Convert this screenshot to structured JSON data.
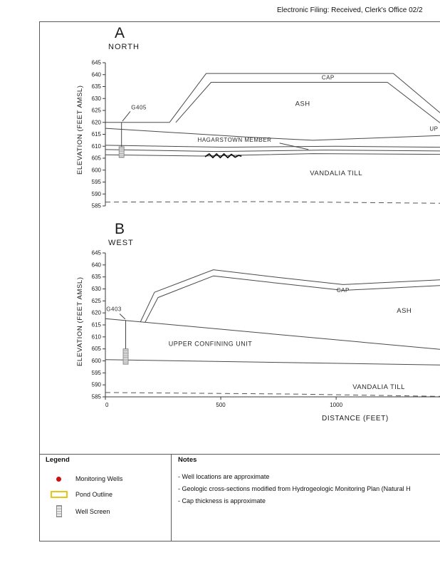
{
  "page": {
    "header_text": "Electronic Filing: Received, Clerk's Office 02/2"
  },
  "colors": {
    "monitoring_well": "#cc1111",
    "pond_outline": "#e6c619",
    "well_screen_fill": "#d9d9d9",
    "section_line": "#4a4a4a"
  },
  "chart_data": [
    {
      "type": "line",
      "panel_letter": "A",
      "panel_title": "NORTH",
      "ylabel": "ELEVATION (FEET AMSL)",
      "ylim": [
        585,
        645
      ],
      "yticks": [
        645,
        640,
        635,
        630,
        625,
        620,
        615,
        610,
        605,
        600,
        595,
        590,
        585
      ],
      "xlim": [
        0,
        1450
      ],
      "xticks": [],
      "grid": false,
      "series": [
        {
          "name": "ground-surface-left",
          "style": "solid",
          "points": [
            [
              0,
              620
            ],
            [
              278,
              620
            ]
          ]
        },
        {
          "name": "cap-top",
          "style": "solid",
          "points": [
            [
              278,
              620
            ],
            [
              437,
              640.5
            ],
            [
              1248,
              640.5
            ],
            [
              1450,
              624
            ]
          ]
        },
        {
          "name": "cap-bottom",
          "style": "solid",
          "points": [
            [
              305,
              620
            ],
            [
              458,
              636.8
            ],
            [
              1222,
              636.8
            ],
            [
              1450,
              619.8
            ]
          ]
        },
        {
          "name": "upper-confining-top",
          "style": "solid",
          "points": [
            [
              0,
              617.5
            ],
            [
              620,
              613.8
            ],
            [
              900,
              612.5
            ],
            [
              1450,
              614.5
            ]
          ]
        },
        {
          "name": "hagarstown-leader",
          "style": "solid",
          "points": [
            [
              755,
              611.3
            ],
            [
              880,
              608.6
            ]
          ]
        },
        {
          "name": "hagarstown-top",
          "style": "solid",
          "points": [
            [
              0,
              610.4
            ],
            [
              520,
              609.6
            ],
            [
              1000,
              610
            ],
            [
              1450,
              609.6
            ]
          ]
        },
        {
          "name": "hagarstown-mid",
          "style": "solid",
          "points": [
            [
              0,
              608.6
            ],
            [
              480,
              607.8
            ],
            [
              950,
              608.4
            ],
            [
              1450,
              608
            ]
          ]
        },
        {
          "name": "hagarstown-base",
          "style": "solid",
          "points": [
            [
              0,
              606.4
            ],
            [
              420,
              605.9
            ],
            [
              900,
              606.9
            ],
            [
              1450,
              606.6
            ]
          ]
        },
        {
          "name": "organic-lens",
          "style": "scribble",
          "points": [
            [
              432,
              605.6
            ],
            [
              450,
              606.8
            ],
            [
              466,
              605.2
            ],
            [
              482,
              606.8
            ],
            [
              498,
              605.2
            ],
            [
              514,
              606.8
            ],
            [
              530,
              605.2
            ],
            [
              546,
              606.6
            ],
            [
              562,
              605.4
            ],
            [
              578,
              606.2
            ],
            [
              590,
              605.8
            ]
          ]
        },
        {
          "name": "potentiometric-surface",
          "style": "dashed",
          "points": [
            [
              0,
              586.6
            ],
            [
              700,
              586.8
            ],
            [
              1450,
              586.1
            ]
          ]
        }
      ],
      "labels": [
        {
          "text": "CAP",
          "x": 965,
          "y": 638,
          "size": 8
        },
        {
          "text": "ASH",
          "x": 855,
          "y": 627,
          "size": 9.5
        },
        {
          "text": "HAGARSTOWN MEMBER",
          "x": 560,
          "y": 611.8,
          "size": 8
        },
        {
          "text": "VANDALIA TILL",
          "x": 1000,
          "y": 597.8,
          "size": 9.5
        },
        {
          "text": "UP",
          "x": 1405,
          "y": 616.5,
          "size": 8,
          "anchor": "start"
        }
      ],
      "wells": [
        {
          "label": "G405",
          "x": 70,
          "top": 620,
          "bottom": 605.3,
          "screen_top": 609.8,
          "screen_bottom": 605.3,
          "label_x": 112,
          "label_y": 625.5,
          "leader": [
            [
              74,
              620.5
            ],
            [
              108,
              624.6
            ]
          ]
        }
      ]
    },
    {
      "type": "line",
      "panel_letter": "B",
      "panel_title": "WEST",
      "ylabel": "ELEVATION (FEET AMSL)",
      "xlabel": "DISTANCE (FEET)",
      "ylim": [
        585,
        645
      ],
      "yticks": [
        645,
        640,
        635,
        630,
        625,
        620,
        615,
        610,
        605,
        600,
        595,
        590,
        585
      ],
      "xlim": [
        0,
        1450
      ],
      "xticks": [
        0,
        500,
        1000
      ],
      "grid": false,
      "series": [
        {
          "name": "upper-confining-top",
          "style": "solid",
          "points": [
            [
              0,
              617.6
            ],
            [
              1450,
              604.8
            ]
          ]
        },
        {
          "name": "cap-top",
          "style": "solid",
          "points": [
            [
              152,
              616.3
            ],
            [
              213,
              628.6
            ],
            [
              468,
              638
            ],
            [
              745,
              634.8
            ],
            [
              1030,
              631.8
            ],
            [
              1450,
              633.8
            ]
          ]
        },
        {
          "name": "cap-bottom",
          "style": "solid",
          "points": [
            [
              172,
              616.1
            ],
            [
              228,
              626.4
            ],
            [
              468,
              635.4
            ],
            [
              745,
              632.4
            ],
            [
              1030,
              629.4
            ],
            [
              1450,
              631.4
            ]
          ]
        },
        {
          "name": "upper-confining-base",
          "style": "solid",
          "points": [
            [
              0,
              600.5
            ],
            [
              1450,
              598.3
            ]
          ]
        },
        {
          "name": "potentiometric-surface",
          "style": "dashed",
          "points": [
            [
              0,
              586.8
            ],
            [
              800,
              586.2
            ],
            [
              1450,
              585.2
            ]
          ]
        }
      ],
      "labels": [
        {
          "text": "UPPER  CONFINING UNIT",
          "x": 455,
          "y": 606.3,
          "size": 9
        },
        {
          "text": "CAP",
          "x": 1030,
          "y": 628.6,
          "size": 8
        },
        {
          "text": "ASH",
          "x": 1295,
          "y": 620,
          "size": 9.5
        },
        {
          "text": "VANDALIA TILL",
          "x": 1185,
          "y": 588.2,
          "size": 9.5
        }
      ],
      "wells": [
        {
          "label": "G403",
          "x": 88,
          "top": 617,
          "bottom": 598.6,
          "screen_top": 605,
          "screen_bottom": 598.6,
          "label_x": 4,
          "label_y": 620.8,
          "leader": [
            [
              62,
              619.6
            ],
            [
              86,
              617.4
            ]
          ]
        }
      ]
    }
  ],
  "legend": {
    "title": "Legend",
    "items": [
      {
        "symbol": "monitoring-well",
        "label": "Monitoring Wells"
      },
      {
        "symbol": "pond-outline",
        "label": "Pond Outline"
      },
      {
        "symbol": "well-screen",
        "label": "Well Screen"
      }
    ]
  },
  "notes": {
    "title": "Notes",
    "items": [
      "- Well locations are approximate",
      "- Geologic cross-sections modified from Hydrogeologic Monitoring Plan (Natural H",
      "- Cap thickness is approximate"
    ]
  }
}
